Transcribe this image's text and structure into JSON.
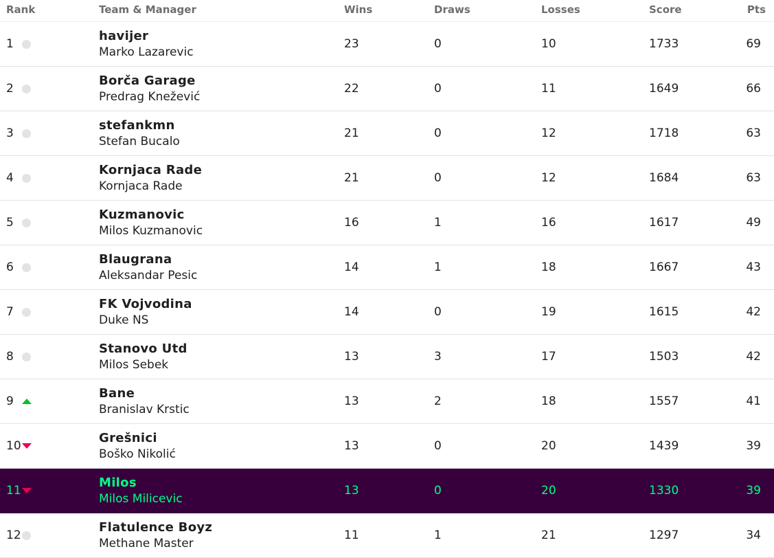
{
  "headers": {
    "rank": "Rank",
    "team_manager": "Team & Manager",
    "wins": "Wins",
    "draws": "Draws",
    "losses": "Losses",
    "score": "Score",
    "pts": "Pts"
  },
  "colors": {
    "highlight_bg": "#37003c",
    "highlight_text": "#00ff87",
    "up_arrow": "#01c22b",
    "down_arrow": "#e90052",
    "no_change_dot": "#e3e3e3"
  },
  "rows": [
    {
      "rank": "1",
      "movement": "none",
      "team": "havijer",
      "manager": "Marko Lazarevic",
      "wins": "23",
      "draws": "0",
      "losses": "10",
      "score": "1733",
      "pts": "69"
    },
    {
      "rank": "2",
      "movement": "none",
      "team": "Borča Garage",
      "manager": "Predrag Knežević",
      "wins": "22",
      "draws": "0",
      "losses": "11",
      "score": "1649",
      "pts": "66"
    },
    {
      "rank": "3",
      "movement": "none",
      "team": "stefankmn",
      "manager": "Stefan Bucalo",
      "wins": "21",
      "draws": "0",
      "losses": "12",
      "score": "1718",
      "pts": "63"
    },
    {
      "rank": "4",
      "movement": "none",
      "team": "Kornjaca Rade",
      "manager": "Kornjaca Rade",
      "wins": "21",
      "draws": "0",
      "losses": "12",
      "score": "1684",
      "pts": "63"
    },
    {
      "rank": "5",
      "movement": "none",
      "team": "Kuzmanovic",
      "manager": "Milos Kuzmanovic",
      "wins": "16",
      "draws": "1",
      "losses": "16",
      "score": "1617",
      "pts": "49"
    },
    {
      "rank": "6",
      "movement": "none",
      "team": "Blaugrana",
      "manager": "Aleksandar Pesic",
      "wins": "14",
      "draws": "1",
      "losses": "18",
      "score": "1667",
      "pts": "43"
    },
    {
      "rank": "7",
      "movement": "none",
      "team": "FK Vojvodina",
      "manager": "Duke NS",
      "wins": "14",
      "draws": "0",
      "losses": "19",
      "score": "1615",
      "pts": "42"
    },
    {
      "rank": "8",
      "movement": "none",
      "team": "Stanovo Utd",
      "manager": "Milos Sebek",
      "wins": "13",
      "draws": "3",
      "losses": "17",
      "score": "1503",
      "pts": "42"
    },
    {
      "rank": "9",
      "movement": "up",
      "team": "Bane",
      "manager": "Branislav Krstic",
      "wins": "13",
      "draws": "2",
      "losses": "18",
      "score": "1557",
      "pts": "41"
    },
    {
      "rank": "10",
      "movement": "down",
      "team": "Grešnici",
      "manager": "Boško Nikolić",
      "wins": "13",
      "draws": "0",
      "losses": "20",
      "score": "1439",
      "pts": "39"
    },
    {
      "rank": "11",
      "movement": "down",
      "highlight": true,
      "team": "Milos",
      "manager": "Milos Milicevic",
      "wins": "13",
      "draws": "0",
      "losses": "20",
      "score": "1330",
      "pts": "39"
    },
    {
      "rank": "12",
      "movement": "none",
      "team": "Flatulence Boyz",
      "manager": "Methane Master",
      "wins": "11",
      "draws": "1",
      "losses": "21",
      "score": "1297",
      "pts": "34"
    }
  ]
}
